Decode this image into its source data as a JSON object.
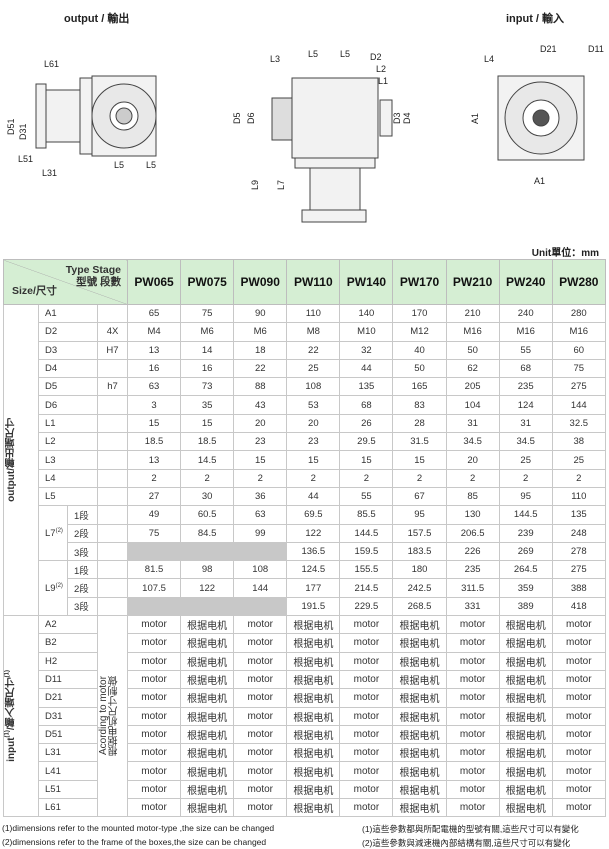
{
  "titles": {
    "output": "output / 輸出",
    "input": "input / 輸入"
  },
  "drawing_labels": {
    "left": [
      "L61",
      "D51",
      "D31",
      "L51",
      "L31",
      "L5",
      "L5"
    ],
    "middle": [
      "L3",
      "L5",
      "L5",
      "D2",
      "L2",
      "L1",
      "D5",
      "D6",
      "D3",
      "D4",
      "L9",
      "L7"
    ],
    "right": [
      "L4",
      "D21",
      "D11",
      "A1",
      "A1"
    ]
  },
  "unit": "Unit單位：mm",
  "header": {
    "type_stage": "Type Stage",
    "type_stage_cn": "型號 段數",
    "size": "Size/尺寸",
    "models": [
      "PW065",
      "PW075",
      "PW090",
      "PW110",
      "PW140",
      "PW170",
      "PW210",
      "PW240",
      "PW280"
    ]
  },
  "output": {
    "group_label": "output/輸出端尺寸",
    "rows": [
      {
        "label": "A1",
        "spec": "",
        "values": [
          "65",
          "75",
          "90",
          "110",
          "140",
          "170",
          "210",
          "240",
          "280"
        ]
      },
      {
        "label": "D2",
        "spec": "4X",
        "values": [
          "M4",
          "M6",
          "M6",
          "M8",
          "M10",
          "M12",
          "M16",
          "M16",
          "M16"
        ]
      },
      {
        "label": "D3",
        "spec": "H7",
        "values": [
          "13",
          "14",
          "18",
          "22",
          "32",
          "40",
          "50",
          "55",
          "60"
        ]
      },
      {
        "label": "D4",
        "spec": "",
        "values": [
          "16",
          "16",
          "22",
          "25",
          "44",
          "50",
          "62",
          "68",
          "75"
        ]
      },
      {
        "label": "D5",
        "spec": "h7",
        "values": [
          "63",
          "73",
          "88",
          "108",
          "135",
          "165",
          "205",
          "235",
          "275"
        ]
      },
      {
        "label": "D6",
        "spec": "",
        "values": [
          "3",
          "35",
          "43",
          "53",
          "68",
          "83",
          "104",
          "124",
          "144"
        ]
      },
      {
        "label": "L1",
        "spec": "",
        "values": [
          "15",
          "15",
          "20",
          "20",
          "26",
          "28",
          "31",
          "31",
          "32.5"
        ]
      },
      {
        "label": "L2",
        "spec": "",
        "values": [
          "18.5",
          "18.5",
          "23",
          "23",
          "29.5",
          "31.5",
          "34.5",
          "34.5",
          "38"
        ]
      },
      {
        "label": "L3",
        "spec": "",
        "values": [
          "13",
          "14.5",
          "15",
          "15",
          "15",
          "15",
          "20",
          "25",
          "25"
        ]
      },
      {
        "label": "L4",
        "spec": "",
        "values": [
          "2",
          "2",
          "2",
          "2",
          "2",
          "2",
          "2",
          "2",
          "2"
        ]
      },
      {
        "label": "L5",
        "spec": "",
        "values": [
          "27",
          "30",
          "36",
          "44",
          "55",
          "67",
          "85",
          "95",
          "110"
        ]
      }
    ],
    "staged": [
      {
        "label": "L7",
        "note": "(2)",
        "stages": [
          {
            "stage": "1段",
            "values": [
              "49",
              "60.5",
              "63",
              "69.5",
              "85.5",
              "95",
              "130",
              "144.5",
              "135"
            ]
          },
          {
            "stage": "2段",
            "values": [
              "75",
              "84.5",
              "99",
              "122",
              "144.5",
              "157.5",
              "206.5",
              "239",
              "248"
            ]
          },
          {
            "stage": "3段",
            "values": [
              null,
              null,
              null,
              "136.5",
              "159.5",
              "183.5",
              "226",
              "269",
              "278"
            ]
          }
        ]
      },
      {
        "label": "L9",
        "note": "(2)",
        "stages": [
          {
            "stage": "1段",
            "values": [
              "81.5",
              "98",
              "108",
              "124.5",
              "155.5",
              "180",
              "235",
              "264.5",
              "275"
            ]
          },
          {
            "stage": "2段",
            "values": [
              "107.5",
              "122",
              "144",
              "177",
              "214.5",
              "242.5",
              "311.5",
              "359",
              "388"
            ]
          },
          {
            "stage": "3段",
            "values": [
              null,
              null,
              null,
              "191.5",
              "229.5",
              "268.5",
              "331",
              "389",
              "418"
            ]
          }
        ]
      }
    ]
  },
  "input": {
    "group_label": "input",
    "group_note": "(1)",
    "group_label_cn": "/輸入端尺寸",
    "group_note2": "(1)",
    "spec_en": "Acording to motor",
    "spec_cn": "根据电机尺寸制做",
    "rows": [
      "A2",
      "B2",
      "H2",
      "D11",
      "D21",
      "D31",
      "D51",
      "L31",
      "L41",
      "L51",
      "L61"
    ],
    "values": [
      "motor",
      "根据电机",
      "motor",
      "根据电机",
      "motor",
      "根据电机",
      "motor",
      "根据电机",
      "motor"
    ]
  },
  "footnotes": {
    "en1": "(1)dimensions refer to the mounted motor-type ,the size can be changed",
    "en2": "(2)dimensions refer to the frame of the boxes,the size can be changed",
    "cn1": "(1)這些參數都與所配電機的型號有關,這些尺寸可以有變化",
    "cn2": "(2)這些參數與減速機內部結構有關,這些尺寸可以有變化"
  }
}
